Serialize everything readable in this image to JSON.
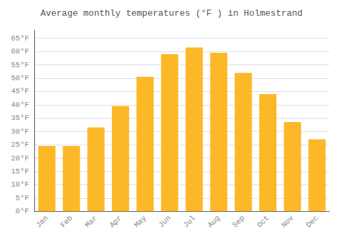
{
  "chart_data": {
    "type": "bar",
    "title": "Average monthly temperatures (°F ) in Holmestrand",
    "categories": [
      "Jan",
      "Feb",
      "Mar",
      "Apr",
      "May",
      "Jun",
      "Jul",
      "Aug",
      "Sep",
      "Oct",
      "Nov",
      "Dec"
    ],
    "values": [
      24.5,
      24.5,
      31.5,
      39.5,
      50.5,
      59.0,
      61.5,
      59.5,
      52.0,
      44.0,
      33.5,
      27.0
    ],
    "color": "#FDB827",
    "ylim": [
      0,
      68
    ],
    "yticks": [
      {
        "value": 0,
        "label": "0°F"
      },
      {
        "value": 5,
        "label": "5°F"
      },
      {
        "value": 10,
        "label": "10°F"
      },
      {
        "value": 15,
        "label": "15°F"
      },
      {
        "value": 20,
        "label": "20°F"
      },
      {
        "value": 25,
        "label": "25°F"
      },
      {
        "value": 30,
        "label": "30°F"
      },
      {
        "value": 35,
        "label": "35°F"
      },
      {
        "value": 40,
        "label": "40°F"
      },
      {
        "value": 45,
        "label": "45°F"
      },
      {
        "value": 50,
        "label": "50°F"
      },
      {
        "value": 55,
        "label": "55°F"
      },
      {
        "value": 60,
        "label": "60°F"
      },
      {
        "value": 65,
        "label": "65°F"
      }
    ],
    "grid": true
  }
}
